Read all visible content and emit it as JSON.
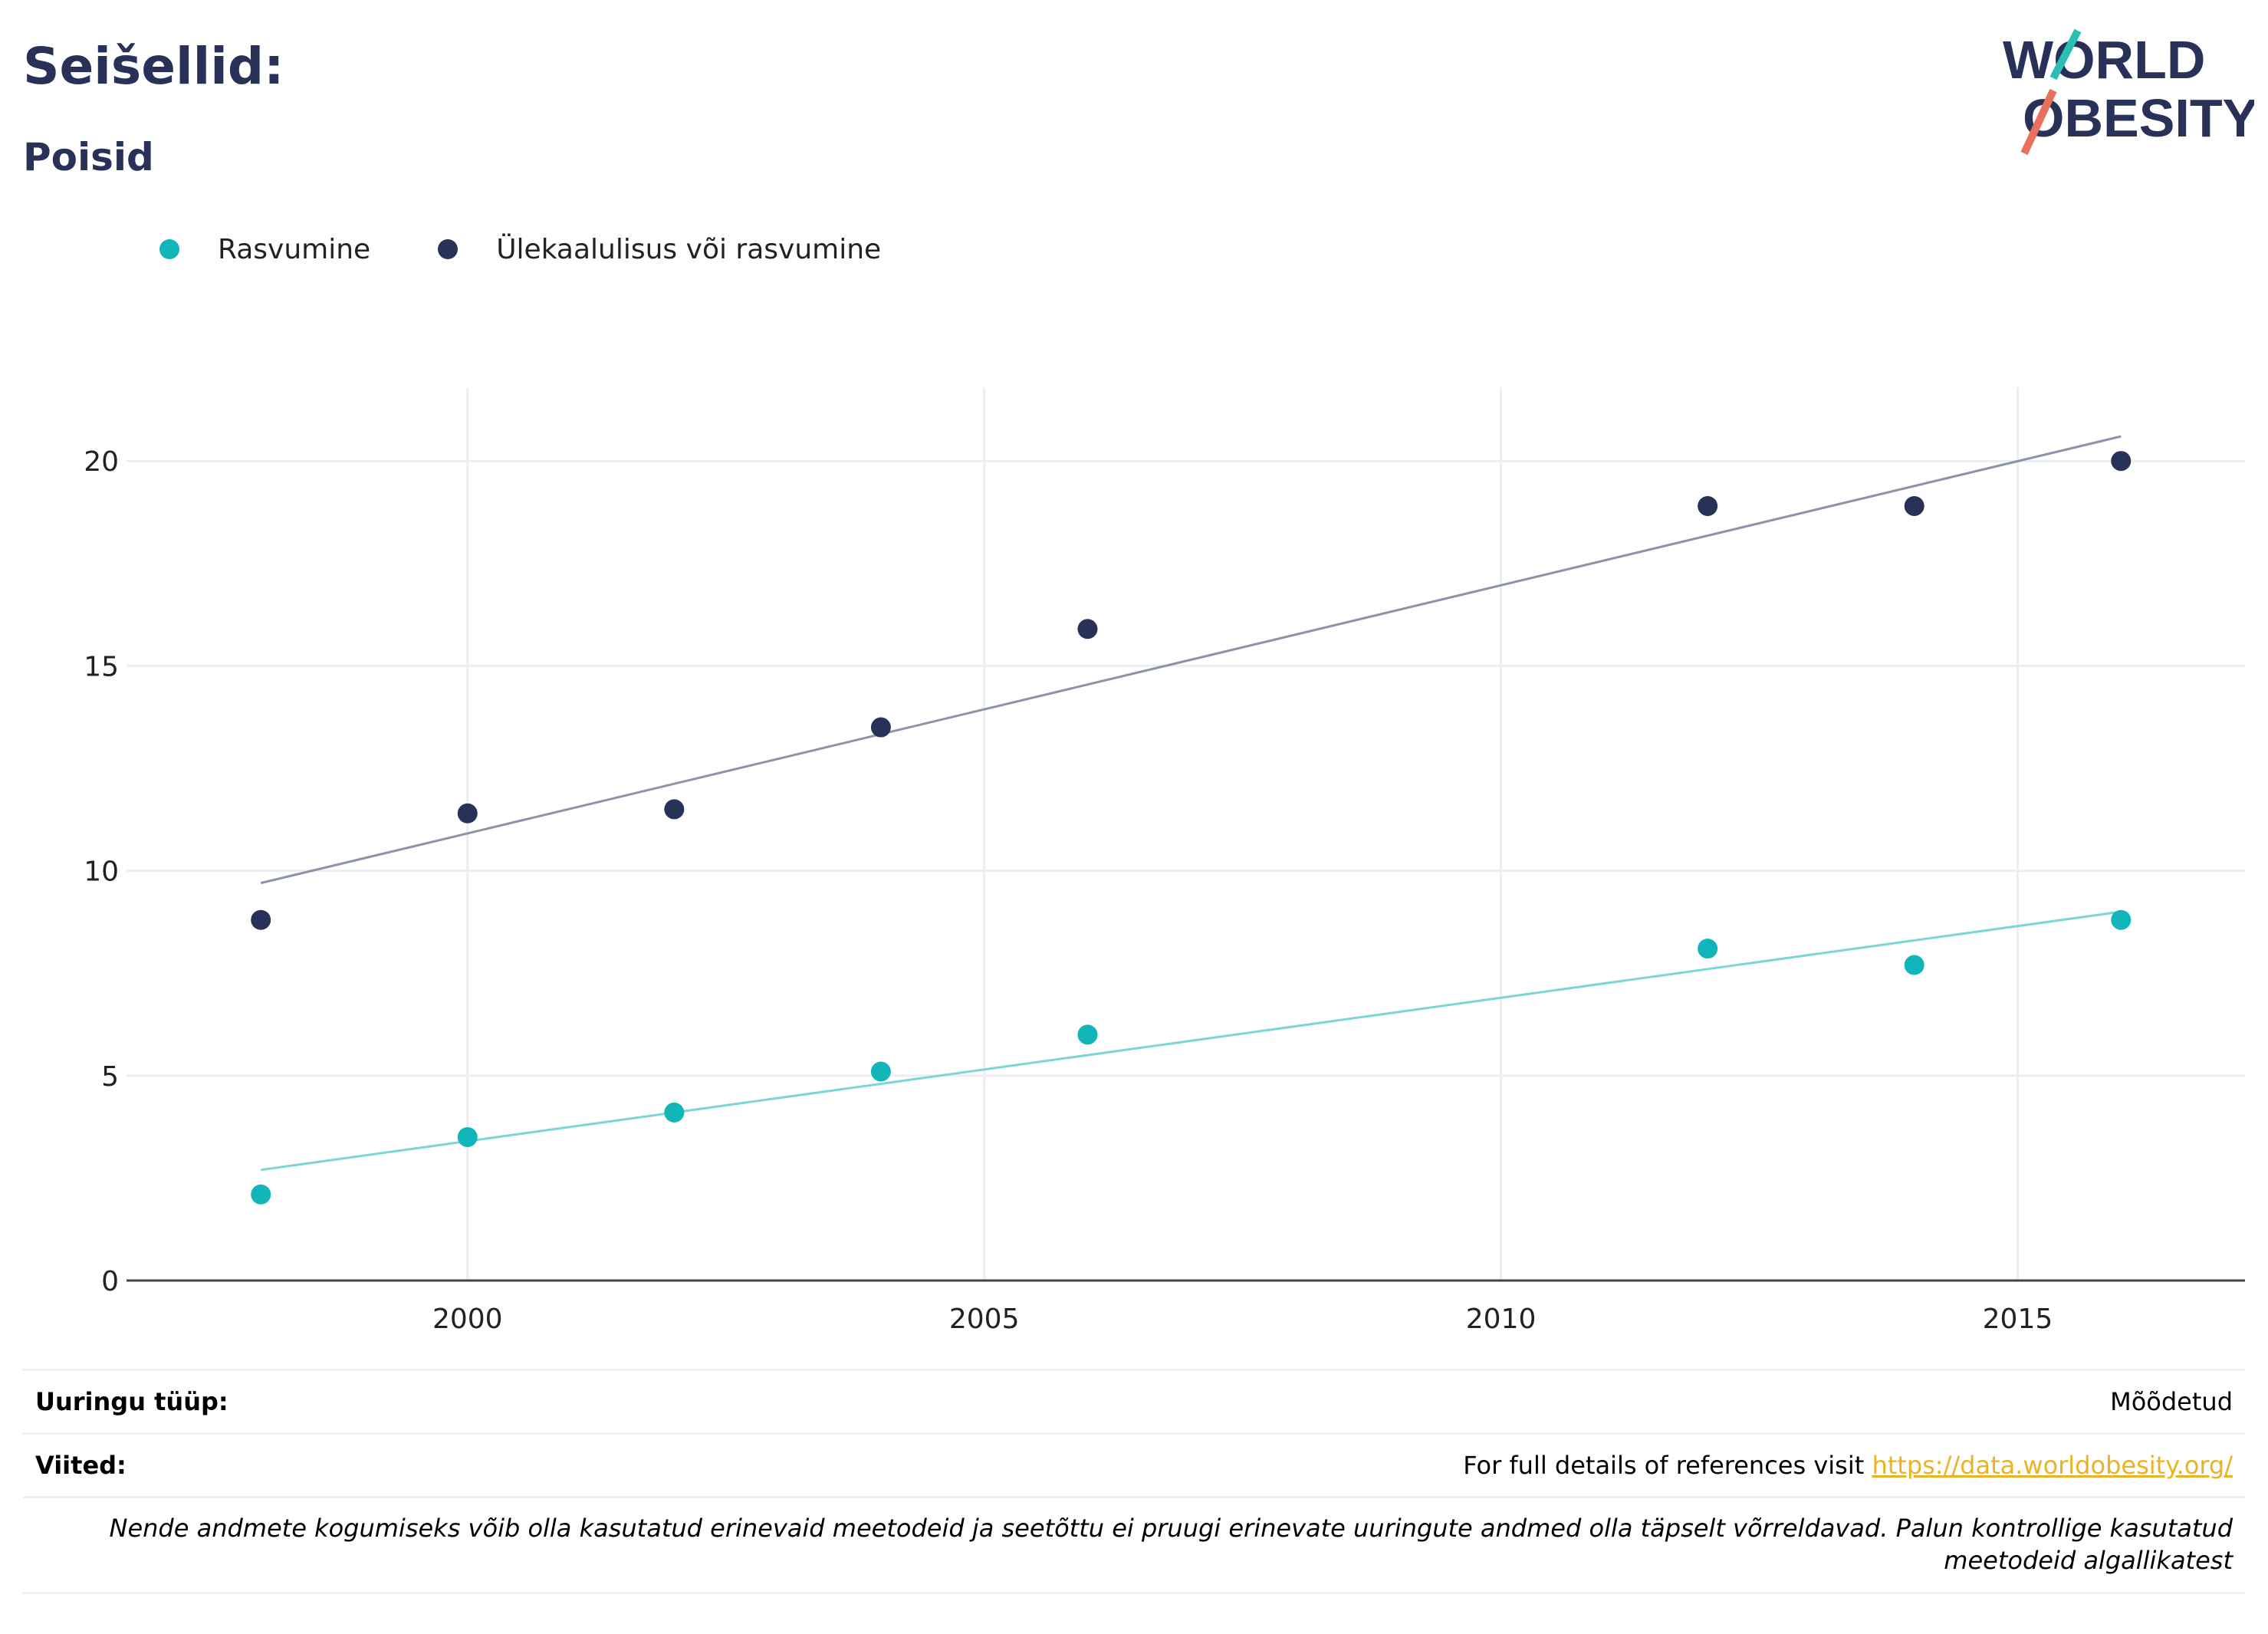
{
  "header": {
    "title": "Seišellid:",
    "subtitle": "Poisid",
    "logo_line1": "WORLD",
    "logo_line2": "OBESITY"
  },
  "legend": [
    {
      "label": "Rasvumine",
      "color": "#12b5b9"
    },
    {
      "label": "Ülekaalulisus või rasvumine",
      "color": "#283259"
    }
  ],
  "chart_data": {
    "type": "scatter",
    "x_ticks": [
      "2000",
      "2005",
      "2010",
      "2015"
    ],
    "y_ticks": [
      "0",
      "5",
      "10",
      "15",
      "20"
    ],
    "xlim": [
      1996.7,
      2017.2
    ],
    "ylim": [
      0,
      21.8
    ],
    "grid": true,
    "legend_position": "top-left",
    "series": [
      {
        "name": "Rasvumine",
        "color": "#12b5b9",
        "trend_color": "#7dd5d7",
        "x": [
          1998,
          2000,
          2002,
          2004,
          2006,
          2012,
          2014,
          2016
        ],
        "y": [
          2.1,
          3.5,
          4.1,
          5.1,
          6.0,
          8.1,
          7.7,
          8.8
        ],
        "trend": [
          [
            1998,
            2.7
          ],
          [
            2016,
            9.0
          ]
        ]
      },
      {
        "name": "Ülekaalulisus või rasvumine",
        "color": "#283259",
        "trend_color": "#8a93a8",
        "x": [
          1998,
          2000,
          2002,
          2004,
          2006,
          2012,
          2014,
          2016
        ],
        "y": [
          8.8,
          11.4,
          11.5,
          13.5,
          15.9,
          18.9,
          18.9,
          20.0
        ],
        "trend": [
          [
            1998,
            9.7
          ],
          [
            2016,
            20.6
          ]
        ]
      }
    ]
  },
  "footer": {
    "survey_label": "Uuringu tüüp:",
    "survey_value": "Mõõdetud",
    "refs_label": "Viited:",
    "refs_text": "For full details of references visit ",
    "refs_link": "https://data.worldobesity.org/",
    "note": "Nende andmete kogumiseks võib olla kasutatud erinevaid meetodeid ja seetõttu ei pruugi erinevate uuringute andmed olla täpselt võrreldavad. Palun kontrollige kasutatud meetodeid algallikatest"
  }
}
